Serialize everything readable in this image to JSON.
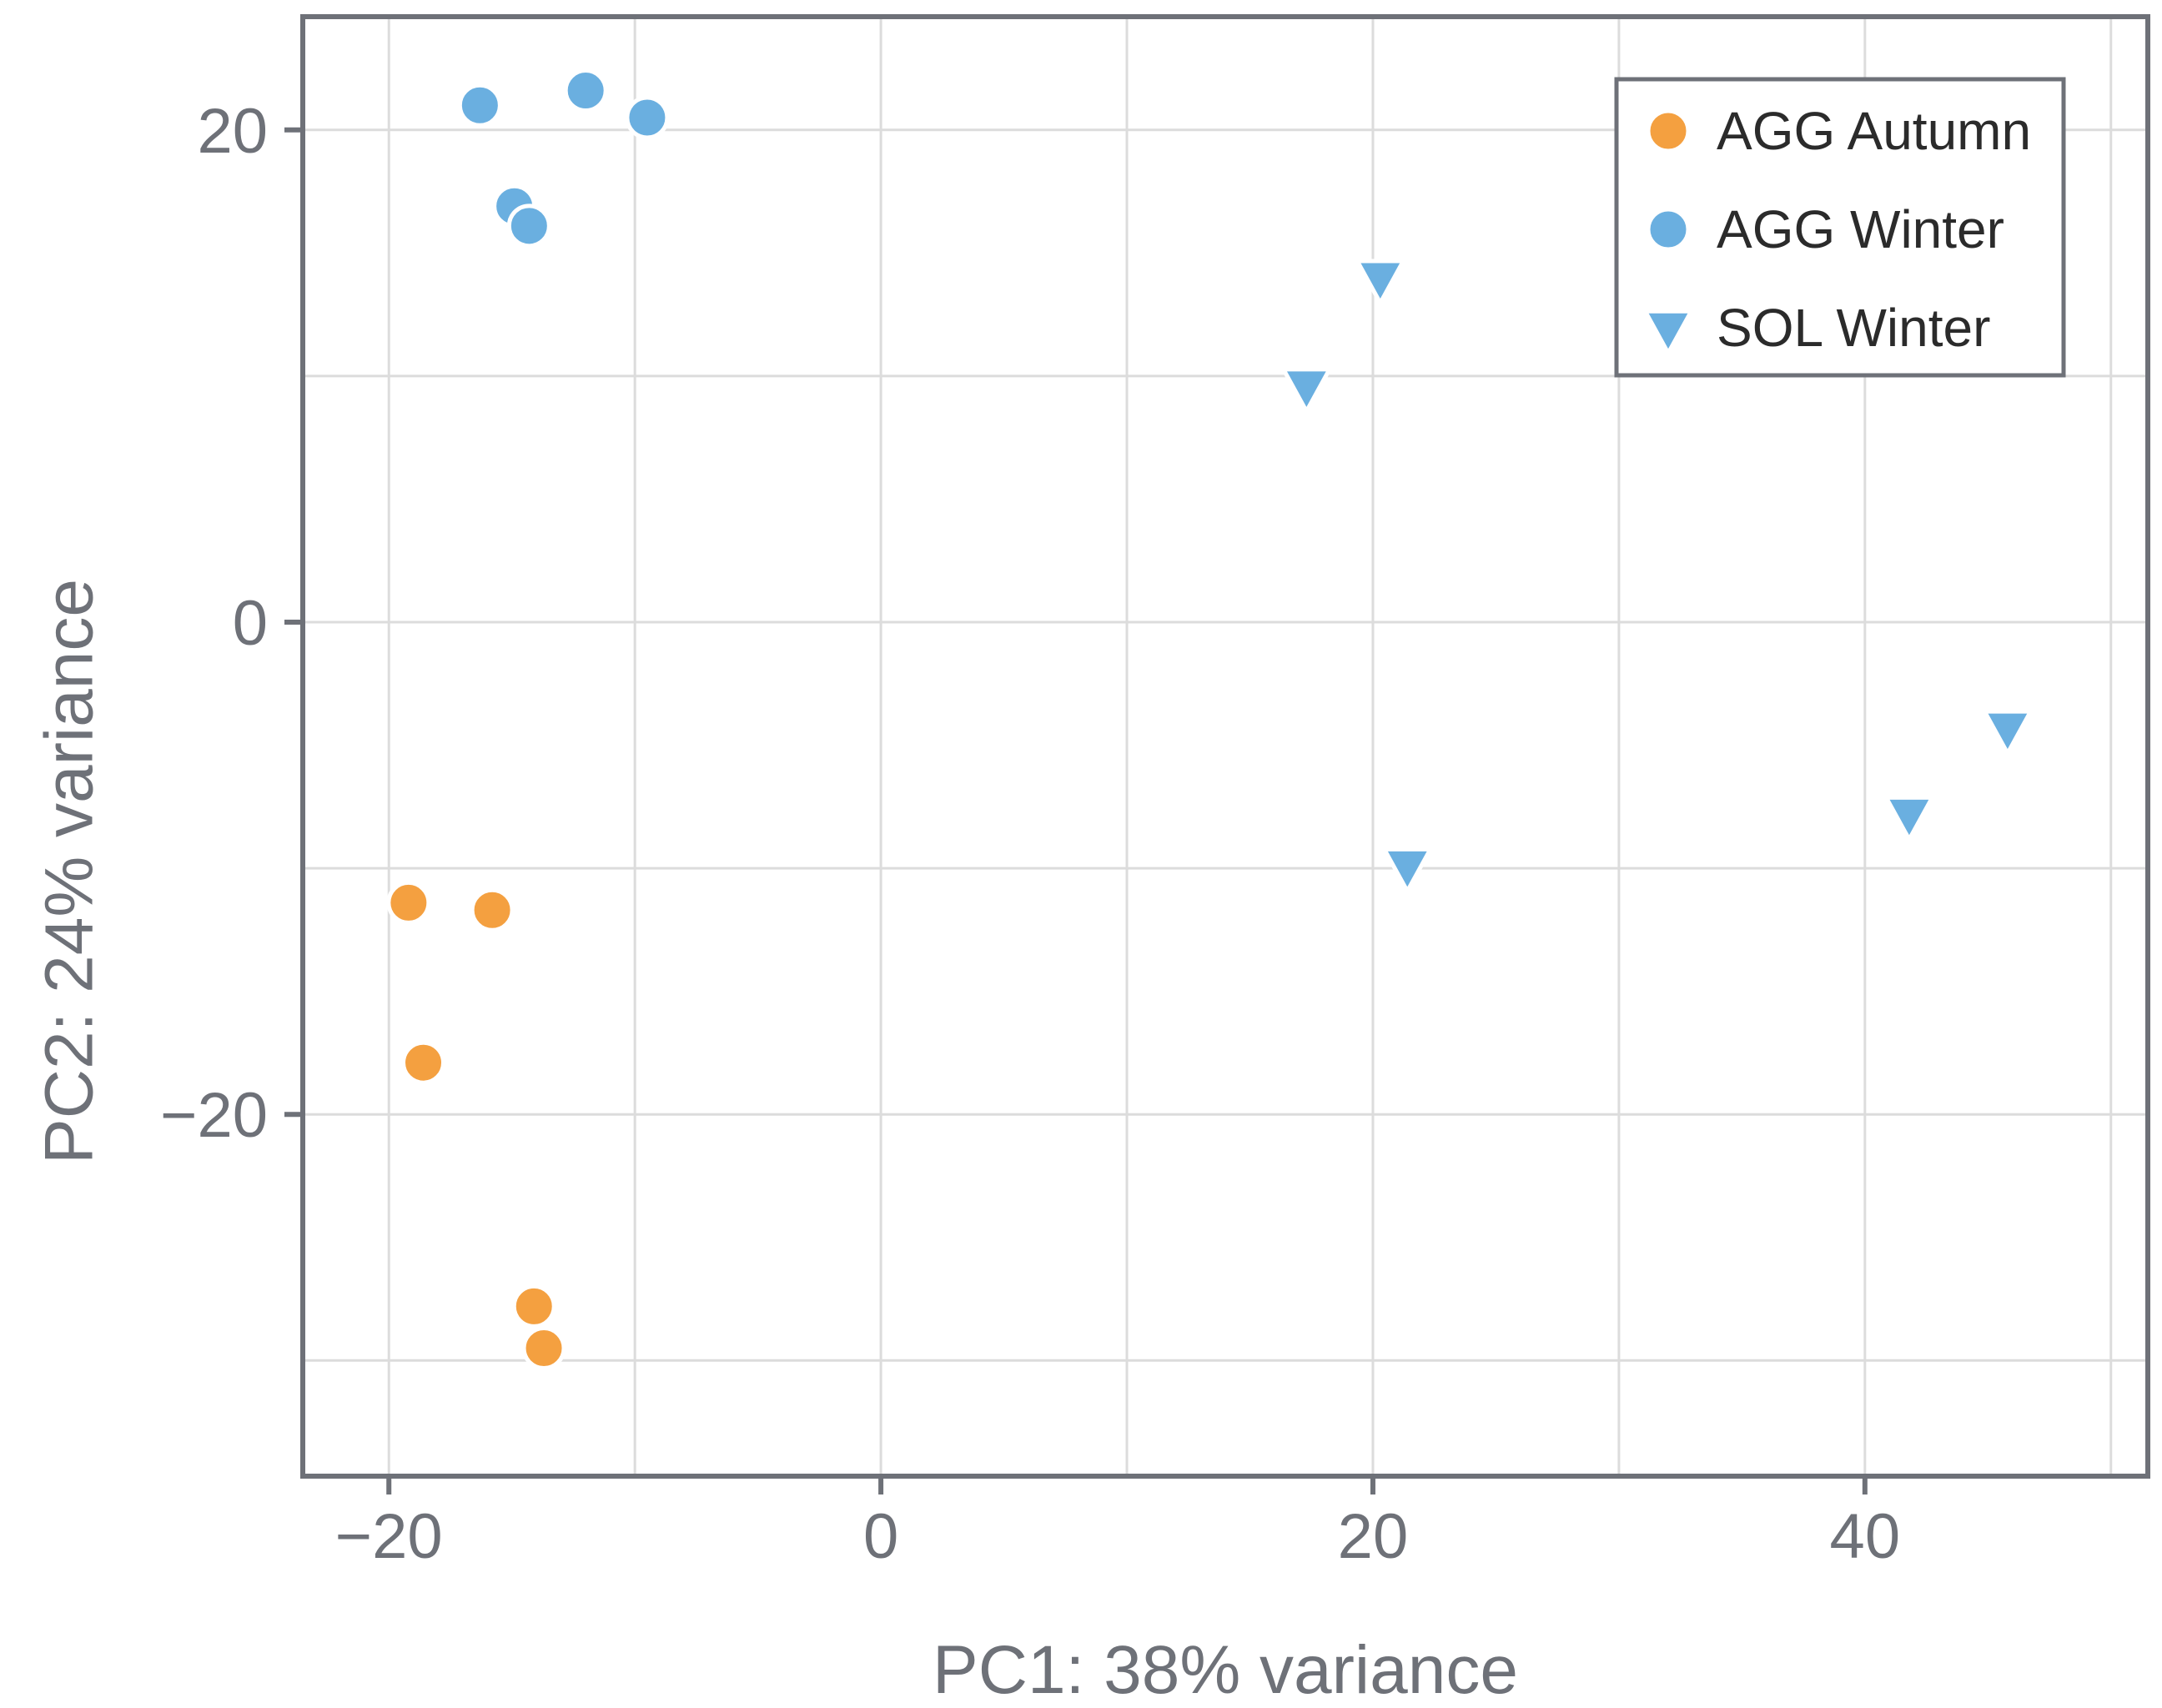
{
  "chart_data": {
    "type": "scatter",
    "title": "",
    "xlabel": "PC1: 38% variance",
    "ylabel": "PC2: 24% variance",
    "xlim": [
      -23.5,
      51.5
    ],
    "ylim": [
      -34.7,
      24.6
    ],
    "x_ticks": [
      -20,
      0,
      20,
      40
    ],
    "x_tick_labels": [
      "−20",
      "0",
      "20",
      "40"
    ],
    "x_minor_grid": [
      -10,
      10,
      30,
      50
    ],
    "y_ticks": [
      -20,
      0,
      20
    ],
    "y_tick_labels": [
      "−20",
      "0",
      "20"
    ],
    "y_minor_grid": [
      -30,
      -10,
      10
    ],
    "grid": true,
    "legend_position": "top-right",
    "series": [
      {
        "name": "AGG Autumn",
        "color": "#f4a040",
        "marker": "circle",
        "x": [
          -19.2,
          -15.8,
          -18.6,
          -14.1,
          -13.7
        ],
        "y": [
          -11.4,
          -11.7,
          -17.9,
          -27.8,
          -29.5
        ]
      },
      {
        "name": "AGG Winter",
        "color": "#6aafe0",
        "marker": "circle",
        "x": [
          -16.3,
          -12.0,
          -9.5,
          -14.9,
          -14.3
        ],
        "y": [
          21.0,
          21.6,
          20.5,
          16.9,
          16.1
        ]
      },
      {
        "name": "SOL Winter",
        "color": "#6aafe0",
        "marker": "triangle-down",
        "x": [
          20.3,
          17.3,
          45.8,
          41.8,
          21.4
        ],
        "y": [
          14.0,
          9.6,
          -4.3,
          -7.8,
          -9.9
        ]
      }
    ]
  }
}
